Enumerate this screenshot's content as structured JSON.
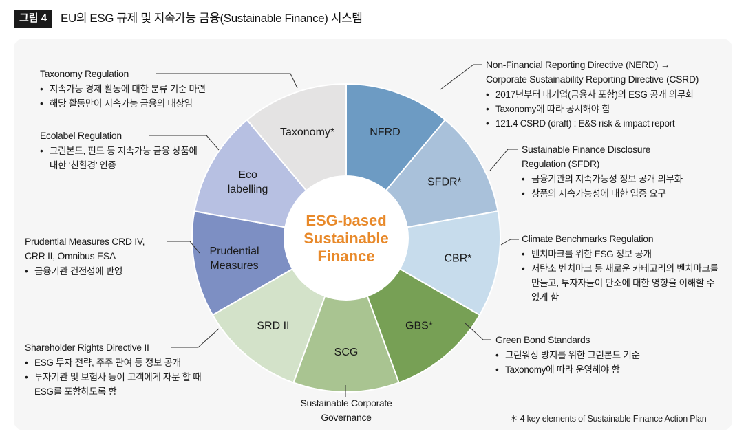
{
  "header": {
    "badge": "그림 4",
    "title": "EU의 ESG 규제 및 지속가능 금융(Sustainable Finance) 시스템"
  },
  "center": {
    "lines": [
      "ESG-based",
      "Sustainable",
      "Finance"
    ],
    "color": "#e8892a"
  },
  "segments": [
    {
      "label": [
        "NFRD"
      ],
      "color": "#6d9bc3",
      "text_color": "#1a1a1a"
    },
    {
      "label": [
        "SFDR*"
      ],
      "color": "#a9c1da",
      "text_color": "#1a1a1a"
    },
    {
      "label": [
        "CBR*"
      ],
      "color": "#c7dcec",
      "text_color": "#1a1a1a"
    },
    {
      "label": [
        "GBS*"
      ],
      "color": "#77a055",
      "text_color": "#1a1a1a"
    },
    {
      "label": [
        "SCG"
      ],
      "color": "#a9c491",
      "text_color": "#1a1a1a"
    },
    {
      "label": [
        "SRD II"
      ],
      "color": "#d3e2c9",
      "text_color": "#1a1a1a"
    },
    {
      "label": [
        "Prudential",
        "Measures"
      ],
      "color": "#7d8fc3",
      "text_color": "#1a1a1a"
    },
    {
      "label": [
        "Eco",
        "labelling"
      ],
      "color": "#b7c0e2",
      "text_color": "#1a1a1a"
    },
    {
      "label": [
        "Taxonomy*"
      ],
      "color": "#e4e3e3",
      "text_color": "#1a1a1a"
    }
  ],
  "blocks": {
    "taxonomy": {
      "heading": "Taxonomy Regulation",
      "bullets": [
        "지속가능 경제 활동에 대한 분류 기준 마련",
        "해당 활동만이 지속가능 금융의 대상임"
      ]
    },
    "ecolabel": {
      "heading": "Ecolabel Regulation",
      "bullets": [
        "그린본드, 펀드 등 지속가능 금융 상품에 대한 ‘친환경’ 인증"
      ]
    },
    "prudential": {
      "heading_lines": [
        "Prudential Measures CRD IV,",
        "CRR II, Omnibus ESA"
      ],
      "bullets": [
        "금융기관 건전성에 반영"
      ]
    },
    "srd": {
      "heading": "Shareholder Rights Directive II",
      "bullets": [
        "ESG 투자 전략, 주주 관여 등 정보 공개",
        "투자기관 및 보험사 등이 고객에게 자문 할 때 ESG를 포함하도록 함"
      ]
    },
    "scg": {
      "heading_lines": [
        "Sustainable Corporate",
        "Governance"
      ]
    },
    "nfrd": {
      "heading_lines": [
        "Non-Financial Reporting Directive (NERD) →",
        "Corporate Sustainability Reporting Directive (CSRD)"
      ],
      "bullets": [
        "2017년부터 대기업(금융사 포함)의 ESG 공개 의무화",
        "Taxonomy에 따라 공시해야 함",
        "121.4 CSRD (draft) : E&S risk & impact report"
      ]
    },
    "sfdr": {
      "heading_lines": [
        "Sustainable Finance Disclosure",
        "Regulation (SFDR)"
      ],
      "bullets": [
        "금융기관의 지속가능성 정보 공개 의무화",
        "상품의 지속가능성에 대한 입증 요구"
      ]
    },
    "cbr": {
      "heading": "Climate Benchmarks Regulation",
      "bullets": [
        "벤치마크를 위한 ESG 정보 공개",
        "저탄소 벤치마크 등 새로운 카테고리의 벤치마크를 만들고, 투자자들이 탄소에 대한 영향을 이해할 수 있게 함"
      ]
    },
    "gbs": {
      "heading": "Green Bond Standards",
      "bullets": [
        "그린워싱 방지를 위한 그린본드 기준",
        "Taxonomy에 따라 운영해야 함"
      ]
    }
  },
  "footnote": "＊ 4 key elements of Sustainable Finance Action Plan"
}
